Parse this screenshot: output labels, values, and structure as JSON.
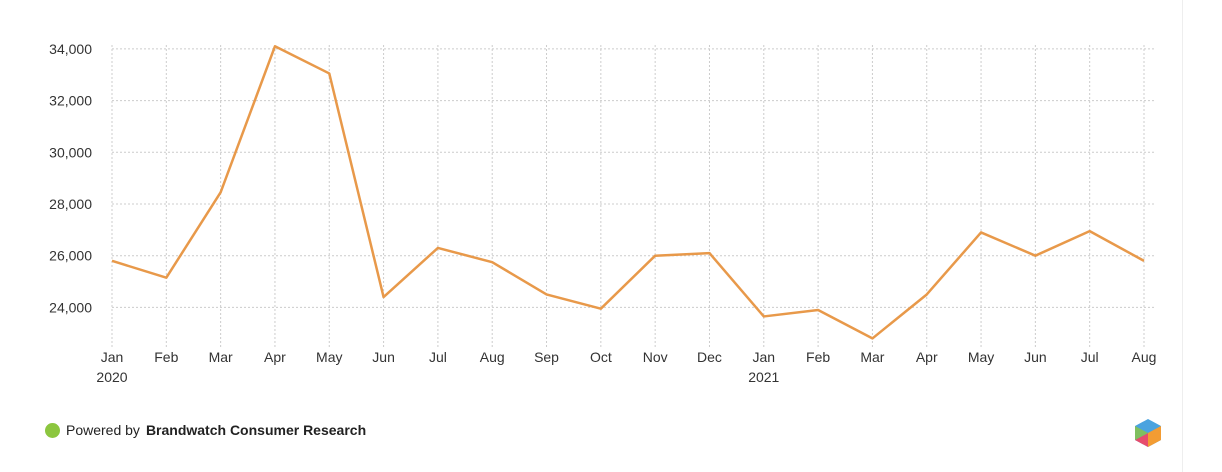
{
  "chart_data": {
    "type": "line",
    "categories": [
      "Jan 2020",
      "Feb",
      "Mar",
      "Apr",
      "May",
      "Jun",
      "Jul",
      "Aug",
      "Sep",
      "Oct",
      "Nov",
      "Dec",
      "Jan 2021",
      "Feb",
      "Mar",
      "Apr",
      "May",
      "Jun",
      "Jul",
      "Aug"
    ],
    "series": [
      {
        "color": "#e8994a",
        "values": [
          25800,
          25150,
          28450,
          34100,
          33050,
          24400,
          26300,
          25750,
          24500,
          23950,
          26000,
          26100,
          23650,
          23900,
          22800,
          24500,
          26900,
          26000,
          26950,
          25800
        ]
      }
    ],
    "ylim": [
      22700,
      34150
    ],
    "yticks": [
      {
        "value": 24000,
        "label": "24,000"
      },
      {
        "value": 26000,
        "label": "26,000"
      },
      {
        "value": 28000,
        "label": "28,000"
      },
      {
        "value": 30000,
        "label": "30,000"
      },
      {
        "value": 32000,
        "label": "32,000"
      },
      {
        "value": 34000,
        "label": "34,000"
      }
    ],
    "grid": true
  },
  "footer": {
    "prefix": "Powered by",
    "brand": "Brandwatch Consumer Research"
  }
}
